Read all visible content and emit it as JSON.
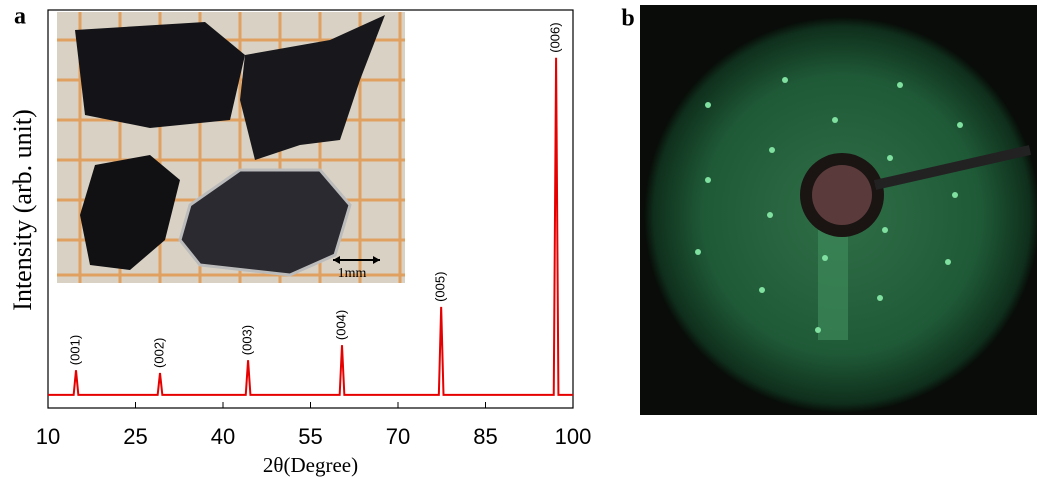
{
  "panel_labels": [
    "a",
    "b"
  ],
  "inset": {
    "scale_label": "1mm"
  },
  "chart_data": {
    "type": "line",
    "xlabel": "2θ(Degree)",
    "ylabel": "Intensity (arb. unit)",
    "x": [
      10,
      14.4,
      14.8,
      15.2,
      28.8,
      29.2,
      29.6,
      43.9,
      44.3,
      44.7,
      60.0,
      60.4,
      60.8,
      77.0,
      77.4,
      77.8,
      96.7,
      97.1,
      97.5,
      100
    ],
    "values": [
      3.3,
      3.3,
      9.5,
      3.3,
      3.3,
      8.8,
      3.3,
      3.3,
      12,
      3.3,
      3.3,
      15.8,
      3.3,
      3.3,
      25.4,
      3.3,
      3.3,
      88,
      3.3,
      3.3
    ],
    "color": "#e60000",
    "xlim": [
      10,
      100
    ],
    "xticks": [
      10,
      25,
      40,
      55,
      70,
      85,
      100
    ],
    "ylim": [
      0,
      100
    ],
    "annotations": [
      {
        "x": 14.8,
        "y": 9.5,
        "text": "(001)"
      },
      {
        "x": 29.2,
        "y": 8.8,
        "text": "(002)"
      },
      {
        "x": 44.3,
        "y": 12,
        "text": "(003)"
      },
      {
        "x": 60.4,
        "y": 15.8,
        "text": "(004)"
      },
      {
        "x": 77.4,
        "y": 25.4,
        "text": "(005)"
      },
      {
        "x": 97.1,
        "y": 88,
        "text": "(006)"
      }
    ]
  }
}
